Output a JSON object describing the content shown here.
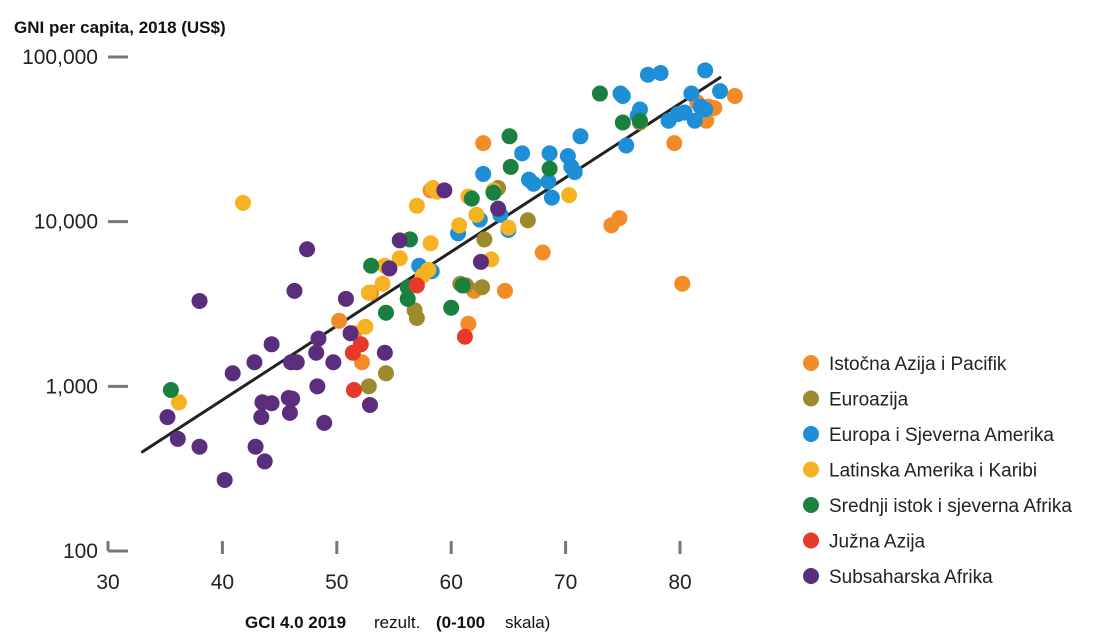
{
  "chart_data": {
    "type": "scatter",
    "ylabel": "GNI per capita, 2018 (US$)",
    "xlabel_parts": [
      "GCI 4.0 2019",
      "rezult.",
      "(0-100",
      "skala)"
    ],
    "y_scale": "log",
    "ylim": [
      100,
      100000
    ],
    "xlim": [
      30,
      85
    ],
    "y_ticks": [
      {
        "value": 100,
        "label": "100"
      },
      {
        "value": 1000,
        "label": "1,000"
      },
      {
        "value": 10000,
        "label": "10,000"
      },
      {
        "value": 100000,
        "label": "100,000"
      }
    ],
    "x_ticks": [
      {
        "value": 30,
        "label": "30"
      },
      {
        "value": 40,
        "label": "40"
      },
      {
        "value": 50,
        "label": "50"
      },
      {
        "value": 60,
        "label": "60"
      },
      {
        "value": 70,
        "label": "70"
      },
      {
        "value": 80,
        "label": "80"
      }
    ],
    "trendline": {
      "x": [
        33,
        83.5
      ],
      "y": [
        400,
        75000
      ],
      "color": "#222222"
    },
    "legend_position": "right",
    "series": [
      {
        "name": "Istočna Azija i Pacifik",
        "color": "#F28C28",
        "points": [
          [
            61.5,
            2400
          ],
          [
            62,
            3800
          ],
          [
            62.8,
            30000
          ],
          [
            64.7,
            3800
          ],
          [
            68,
            6500
          ],
          [
            74,
            9500
          ],
          [
            74.7,
            10500
          ],
          [
            79.5,
            30000
          ],
          [
            80.2,
            4200
          ],
          [
            81.5,
            53000
          ],
          [
            82.3,
            41000
          ],
          [
            82.5,
            50000
          ],
          [
            83,
            49000
          ],
          [
            84.8,
            58000
          ],
          [
            50.2,
            2500
          ],
          [
            51.5,
            2100
          ],
          [
            52.2,
            1400
          ],
          [
            53,
            3700
          ],
          [
            58.2,
            15500
          ]
        ]
      },
      {
        "name": "Euroazija",
        "color": "#9C8A2E",
        "points": [
          [
            52.8,
            1000
          ],
          [
            54.3,
            1200
          ],
          [
            57,
            2600
          ],
          [
            56.8,
            2900
          ],
          [
            61.3,
            4100
          ],
          [
            62.7,
            4000
          ],
          [
            62.9,
            7800
          ],
          [
            64.1,
            16000
          ],
          [
            66.7,
            10200
          ],
          [
            76.5,
            40000
          ],
          [
            60.8,
            4200
          ]
        ]
      },
      {
        "name": "Europa i Sjeverna Amerika",
        "color": "#1E8FD6",
        "points": [
          [
            57.2,
            5400
          ],
          [
            58.3,
            5000
          ],
          [
            60.6,
            8500
          ],
          [
            62.5,
            10300
          ],
          [
            62.8,
            19500
          ],
          [
            64.3,
            11000
          ],
          [
            65,
            8900
          ],
          [
            66.2,
            26000
          ],
          [
            66.8,
            18000
          ],
          [
            67.2,
            17000
          ],
          [
            68.5,
            17500
          ],
          [
            68.6,
            26000
          ],
          [
            68.8,
            14000
          ],
          [
            70.2,
            25000
          ],
          [
            70.5,
            21500
          ],
          [
            70.8,
            20000
          ],
          [
            71.3,
            33000
          ],
          [
            74.8,
            60000
          ],
          [
            75,
            58000
          ],
          [
            75.3,
            29000
          ],
          [
            76.3,
            44000
          ],
          [
            76.5,
            48000
          ],
          [
            77.2,
            78000
          ],
          [
            78.3,
            80000
          ],
          [
            79,
            41000
          ],
          [
            79.8,
            45000
          ],
          [
            80.4,
            46000
          ],
          [
            81,
            60000
          ],
          [
            81.3,
            41000
          ],
          [
            81.8,
            50000
          ],
          [
            82.2,
            48000
          ],
          [
            82.2,
            83000
          ],
          [
            83.5,
            62000
          ],
          [
            61.7,
            14000
          ]
        ]
      },
      {
        "name": "Latinska Amerika i Karibi",
        "color": "#F6B221",
        "points": [
          [
            36.2,
            800
          ],
          [
            41.8,
            13000
          ],
          [
            52.5,
            2300
          ],
          [
            52.8,
            3700
          ],
          [
            54.2,
            5400
          ],
          [
            55.5,
            6000
          ],
          [
            57,
            12500
          ],
          [
            57.5,
            4700
          ],
          [
            58.2,
            7400
          ],
          [
            58.4,
            16000
          ],
          [
            58.8,
            15200
          ],
          [
            60.7,
            9500
          ],
          [
            61.5,
            14200
          ],
          [
            62.2,
            11000
          ],
          [
            63.5,
            5900
          ],
          [
            63.7,
            15500
          ],
          [
            65,
            9200
          ],
          [
            70.3,
            14500
          ],
          [
            54,
            4200
          ],
          [
            58,
            5100
          ]
        ]
      },
      {
        "name": "Srednji istok i sjeverna Afrika",
        "color": "#1A8040",
        "points": [
          [
            35.5,
            950
          ],
          [
            53,
            5400
          ],
          [
            54.3,
            2800
          ],
          [
            56.2,
            3400
          ],
          [
            56.2,
            4000
          ],
          [
            56.4,
            7800
          ],
          [
            60,
            3000
          ],
          [
            61,
            4100
          ],
          [
            61.8,
            13800
          ],
          [
            63.7,
            15000
          ],
          [
            65.1,
            33000
          ],
          [
            65.2,
            21500
          ],
          [
            68.6,
            21000
          ],
          [
            73,
            60000
          ],
          [
            75,
            40000
          ],
          [
            76.5,
            41000
          ]
        ]
      },
      {
        "name": "Južna Azija",
        "color": "#E8382A",
        "points": [
          [
            51.4,
            1600
          ],
          [
            51.5,
            950
          ],
          [
            52.1,
            1800
          ],
          [
            57,
            4100
          ],
          [
            61.2,
            2000
          ]
        ]
      },
      {
        "name": "Subsaharska Afrika",
        "color": "#5A2E7D",
        "points": [
          [
            35.2,
            650
          ],
          [
            36.1,
            480
          ],
          [
            38,
            430
          ],
          [
            38,
            3300
          ],
          [
            40.2,
            270
          ],
          [
            40.9,
            1200
          ],
          [
            42.8,
            1400
          ],
          [
            42.9,
            430
          ],
          [
            43.4,
            650
          ],
          [
            43.5,
            800
          ],
          [
            43.7,
            350
          ],
          [
            44.3,
            1800
          ],
          [
            44.3,
            790
          ],
          [
            45.8,
            850
          ],
          [
            45.9,
            690
          ],
          [
            46.1,
            840
          ],
          [
            46,
            1400
          ],
          [
            46.3,
            3800
          ],
          [
            46.5,
            1400
          ],
          [
            47.4,
            6800
          ],
          [
            48.2,
            1600
          ],
          [
            48.3,
            1000
          ],
          [
            48.4,
            1950
          ],
          [
            48.9,
            600
          ],
          [
            49.7,
            1400
          ],
          [
            50.8,
            3400
          ],
          [
            51.2,
            2100
          ],
          [
            52.9,
            770
          ],
          [
            54.2,
            1600
          ],
          [
            54.6,
            5200
          ],
          [
            55.5,
            7700
          ],
          [
            59.4,
            15500
          ],
          [
            62.6,
            5700
          ],
          [
            64.1,
            12000
          ]
        ]
      }
    ]
  }
}
